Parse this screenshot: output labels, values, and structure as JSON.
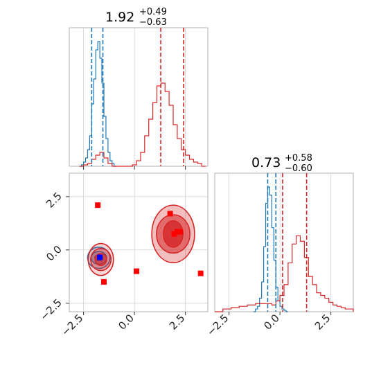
{
  "chart_data": [
    {
      "id": "hist-x",
      "type": "histogram",
      "title_value": "1.92",
      "title_plus": "+0.49",
      "title_minus": "−0.63",
      "xlim": [
        -3.2,
        3.6
      ],
      "xticks": [
        -2.5,
        0.0,
        2.5
      ],
      "grid": true,
      "series": [
        {
          "color": "#1f77b4",
          "bins": [
            -2.7,
            -2.6,
            -2.5,
            -2.4,
            -2.3,
            -2.2,
            -2.1,
            -2.0,
            -1.9,
            -1.8,
            -1.7,
            -1.6,
            -1.5,
            -1.4,
            -1.3,
            -1.2,
            -1.1,
            -1.0,
            -0.9
          ],
          "counts": [
            0.0,
            0.01,
            0.03,
            0.06,
            0.12,
            0.22,
            0.45,
            0.63,
            0.84,
            0.9,
            0.78,
            0.6,
            0.36,
            0.2,
            0.1,
            0.04,
            0.02,
            0.0
          ],
          "quantile_lines": [
            -2.1,
            -1.55
          ]
        },
        {
          "color": "#d62728",
          "bins": [
            -2.7,
            -2.5,
            -2.3,
            -2.1,
            -1.9,
            -1.7,
            -1.5,
            -1.3,
            -1.1,
            -0.9,
            -0.7,
            -0.5,
            -0.3,
            -0.1,
            0.1,
            0.3,
            0.5,
            0.7,
            0.9,
            1.1,
            1.3,
            1.5,
            1.7,
            1.9,
            2.1,
            2.3,
            2.5,
            2.7,
            2.9,
            3.1,
            3.3,
            3.5
          ],
          "counts": [
            0.0,
            0.01,
            0.02,
            0.05,
            0.08,
            0.1,
            0.06,
            0.02,
            0.0,
            0.0,
            0.0,
            0.0,
            0.0,
            0.01,
            0.04,
            0.1,
            0.22,
            0.34,
            0.46,
            0.58,
            0.6,
            0.54,
            0.44,
            0.3,
            0.2,
            0.12,
            0.08,
            0.05,
            0.03,
            0.02,
            0.0
          ],
          "quantile_lines": [
            1.29,
            2.41
          ]
        }
      ]
    },
    {
      "id": "hist-y",
      "type": "histogram",
      "title_value": "0.73",
      "title_plus": "+0.58",
      "title_minus": "−0.60",
      "xlim": [
        -3.2,
        3.6
      ],
      "xticks": [
        -2.5,
        0.0,
        2.5
      ],
      "grid": true,
      "series": [
        {
          "color": "#1f77b4",
          "bins": [
            -1.3,
            -1.2,
            -1.1,
            -1.0,
            -0.9,
            -0.8,
            -0.7,
            -0.6,
            -0.5,
            -0.4,
            -0.3,
            -0.2,
            -0.1,
            0.0,
            0.1,
            0.2,
            0.3,
            0.4
          ],
          "counts": [
            0.0,
            0.02,
            0.04,
            0.1,
            0.22,
            0.48,
            0.8,
            0.92,
            0.86,
            0.62,
            0.38,
            0.18,
            0.08,
            0.04,
            0.02,
            0.01,
            0.0
          ],
          "quantile_lines": [
            -0.6,
            -0.2
          ]
        },
        {
          "color": "#d62728",
          "bins": [
            -3.2,
            -2.8,
            -2.4,
            -2.0,
            -1.6,
            -1.2,
            -0.8,
            -0.4,
            -0.2,
            0.0,
            0.2,
            0.4,
            0.6,
            0.8,
            1.0,
            1.2,
            1.4,
            1.6,
            1.8,
            2.0,
            2.2,
            2.4,
            2.6,
            2.8,
            3.0,
            3.2,
            3.6
          ],
          "counts": [
            0.0,
            0.02,
            0.03,
            0.04,
            0.05,
            0.06,
            0.06,
            0.05,
            0.08,
            0.12,
            0.2,
            0.36,
            0.5,
            0.56,
            0.52,
            0.4,
            0.26,
            0.2,
            0.14,
            0.12,
            0.1,
            0.07,
            0.05,
            0.04,
            0.03,
            0.02
          ],
          "quantile_lines": [
            0.13,
            1.31
          ]
        }
      ]
    },
    {
      "id": "joint",
      "type": "scatter",
      "xlim": [
        -3.2,
        3.6
      ],
      "ylim": [
        -2.9,
        3.6
      ],
      "xticks": [
        -2.5,
        0.0,
        2.5
      ],
      "yticks": [
        -2.5,
        0.0,
        2.5
      ],
      "grid": true,
      "contours": [
        {
          "color": "#1f77b4",
          "center": [
            -1.75,
            -0.37
          ],
          "levels": [
            {
              "r": [
                0.55,
                0.5
              ],
              "opacity": 0.18
            },
            {
              "r": [
                0.38,
                0.3
              ],
              "opacity": 0.35
            },
            {
              "r": [
                0.2,
                0.14
              ],
              "opacity": 0.55
            }
          ]
        },
        {
          "color": "#d62728",
          "center": [
            -1.65,
            -0.45
          ],
          "levels": [
            {
              "r": [
                0.62,
                0.75
              ],
              "opacity": 0.18
            },
            {
              "r": [
                0.5,
                0.52
              ],
              "opacity": 0.35
            },
            {
              "r": [
                0.28,
                0.28
              ],
              "opacity": 0.55
            }
          ]
        },
        {
          "color": "#d62728",
          "center": [
            1.9,
            0.75
          ],
          "levels": [
            {
              "r": [
                1.05,
                1.35
              ],
              "opacity": 0.3
            },
            {
              "r": [
                0.82,
                0.9
              ],
              "opacity": 0.55
            },
            {
              "r": [
                0.48,
                0.62
              ],
              "opacity": 0.8
            }
          ]
        }
      ],
      "markers": [
        {
          "x": -1.8,
          "y": 2.1,
          "color": "#ff0000"
        },
        {
          "x": -1.5,
          "y": -1.5,
          "color": "#ff0000"
        },
        {
          "x": 0.1,
          "y": -1.0,
          "color": "#ff0000"
        },
        {
          "x": 1.75,
          "y": 1.7,
          "color": "#ff0000"
        },
        {
          "x": 1.95,
          "y": 0.75,
          "color": "#ff0000"
        },
        {
          "x": 2.1,
          "y": 0.85,
          "color": "#ff0000"
        },
        {
          "x": 2.25,
          "y": 0.85,
          "color": "#ff0000"
        },
        {
          "x": 3.25,
          "y": -1.1,
          "color": "#ff0000"
        },
        {
          "x": -1.7,
          "y": -0.35,
          "color": "#0000ff"
        }
      ]
    }
  ]
}
